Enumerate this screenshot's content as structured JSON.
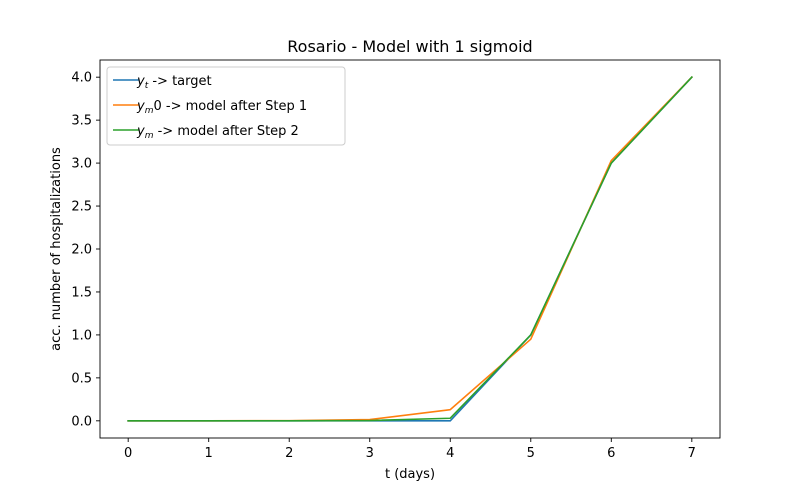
{
  "chart_data": {
    "type": "line",
    "title": "Rosario - Model with 1 sigmoid",
    "xlabel": "t (days)",
    "ylabel": "acc. number of hospitalizations",
    "xlim": [
      -0.35,
      7.35
    ],
    "ylim": [
      -0.2,
      4.2
    ],
    "xticks": [
      0,
      1,
      2,
      3,
      4,
      5,
      6,
      7
    ],
    "yticks": [
      0.0,
      0.5,
      1.0,
      1.5,
      2.0,
      2.5,
      3.0,
      3.5,
      4.0
    ],
    "grid": false,
    "legend_position": "upper-left",
    "x": [
      0,
      1,
      2,
      3,
      4,
      5,
      6,
      7
    ],
    "series": [
      {
        "name_main": "y",
        "name_sub": "t",
        "name_rest": " ->  target",
        "color": "#1f77b4",
        "values": [
          0,
          0,
          0,
          0,
          0,
          1,
          3,
          4
        ]
      },
      {
        "name_main": "y",
        "name_sub": "m",
        "name_rest": "0 ->  model after Step 1",
        "color": "#ff7f0e",
        "values": [
          0.0,
          0.0,
          0.002,
          0.015,
          0.13,
          0.95,
          3.03,
          4.0
        ]
      },
      {
        "name_main": "y",
        "name_sub": "m",
        "name_rest": " ->  model after Step 2",
        "color": "#2ca02c",
        "values": [
          0.0,
          0.0,
          0.0,
          0.003,
          0.03,
          1.0,
          3.0,
          4.0
        ]
      }
    ]
  }
}
